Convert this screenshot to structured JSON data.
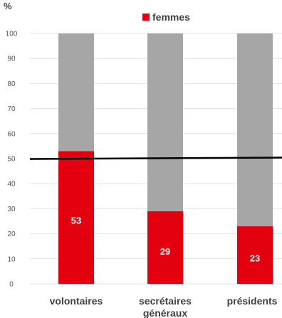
{
  "chart_data": {
    "type": "bar",
    "stacked": true,
    "unit_label": "%",
    "categories": [
      "volontaires",
      "secrétaires généraux",
      "présidents"
    ],
    "category_lines": [
      [
        "volontaires"
      ],
      [
        "secrétaires",
        "généraux"
      ],
      [
        "présidents"
      ]
    ],
    "series": [
      {
        "name": "femmes",
        "values": [
          53,
          29,
          23
        ],
        "color": "#e3000f",
        "show_labels": true
      },
      {
        "values": [
          47,
          71,
          77
        ],
        "color": "#a6a6a6",
        "show_labels": false
      }
    ],
    "legend": {
      "position": "top",
      "label": "femmes"
    },
    "ylim": [
      0,
      100
    ],
    "yticks": [
      0,
      10,
      20,
      30,
      40,
      50,
      60,
      70,
      80,
      90,
      100
    ],
    "reference_line": 50,
    "grid": true,
    "colors": {
      "grid": "#dbe4ef",
      "reference": "#000000"
    }
  }
}
